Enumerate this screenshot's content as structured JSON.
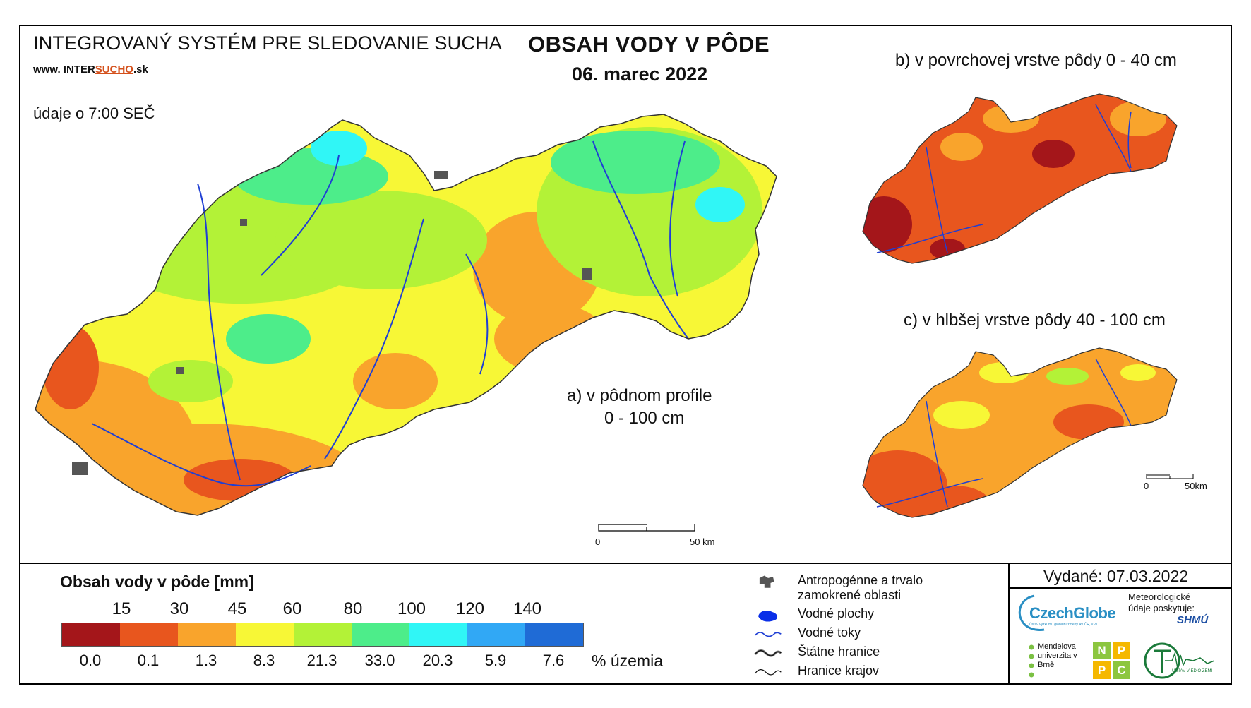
{
  "header": {
    "system_name": "INTEGROVANÝ SYSTÉM PRE SLEDOVANIE SUCHA",
    "website_prefix": "www.",
    "website_mid": "INTER",
    "website_accent": "SUCHO",
    "website_suffix": ".sk",
    "data_time": "údaje o 7:00 SEČ",
    "title": "OBSAH VODY V PÔDE",
    "date": "06. marec 2022"
  },
  "panels": {
    "a_line1": "a) v pôdnom profile",
    "a_line2": "0 - 100 cm",
    "b": "b) v povrchovej vrstve pôdy 0 - 40 cm",
    "c": "c) v hlbšej vrstve pôdy 40 - 100 cm"
  },
  "scales": {
    "main_start": "0",
    "main_end": "50 km",
    "small_start": "0",
    "small_end": "50km"
  },
  "legend": {
    "title": "Obsah vody v pôde  [mm]",
    "thresholds": [
      "15",
      "30",
      "45",
      "60",
      "80",
      "100",
      "120",
      "140"
    ],
    "colors": [
      "#a4161a",
      "#e8561e",
      "#f9a42c",
      "#f7f736",
      "#b3f237",
      "#4ded8a",
      "#30f6f6",
      "#31a8f5",
      "#1f6bd6"
    ],
    "percent_of_area": [
      "0.0",
      "0.1",
      "1.3",
      "8.3",
      "21.3",
      "33.0",
      "20.3",
      "5.9",
      "7.6"
    ],
    "percent_unit": "% územia"
  },
  "symbols": {
    "anthropogenic": "Antropogénne a trvalo zamokrené oblasti",
    "water_bodies": "Vodné plochy",
    "water_streams": "Vodné toky",
    "state_border": "Štátne hranice",
    "region_border": "Hranice krajov"
  },
  "footer": {
    "issued": "Vydané: 07.03.2022",
    "czechglobe": "CzechGlobe",
    "czechglobe_sub": "Ústav výzkumu globální změny AV ČR, v.v.i.",
    "met_data": "Meteorologické údaje poskytuje:",
    "shmu": "SHMÚ",
    "mendel": "Mendelova univerzita v Brně",
    "npp_letters": [
      "N",
      "P",
      "P",
      "C"
    ],
    "uvz": "ÚSTAV VIED O ZEMI"
  }
}
